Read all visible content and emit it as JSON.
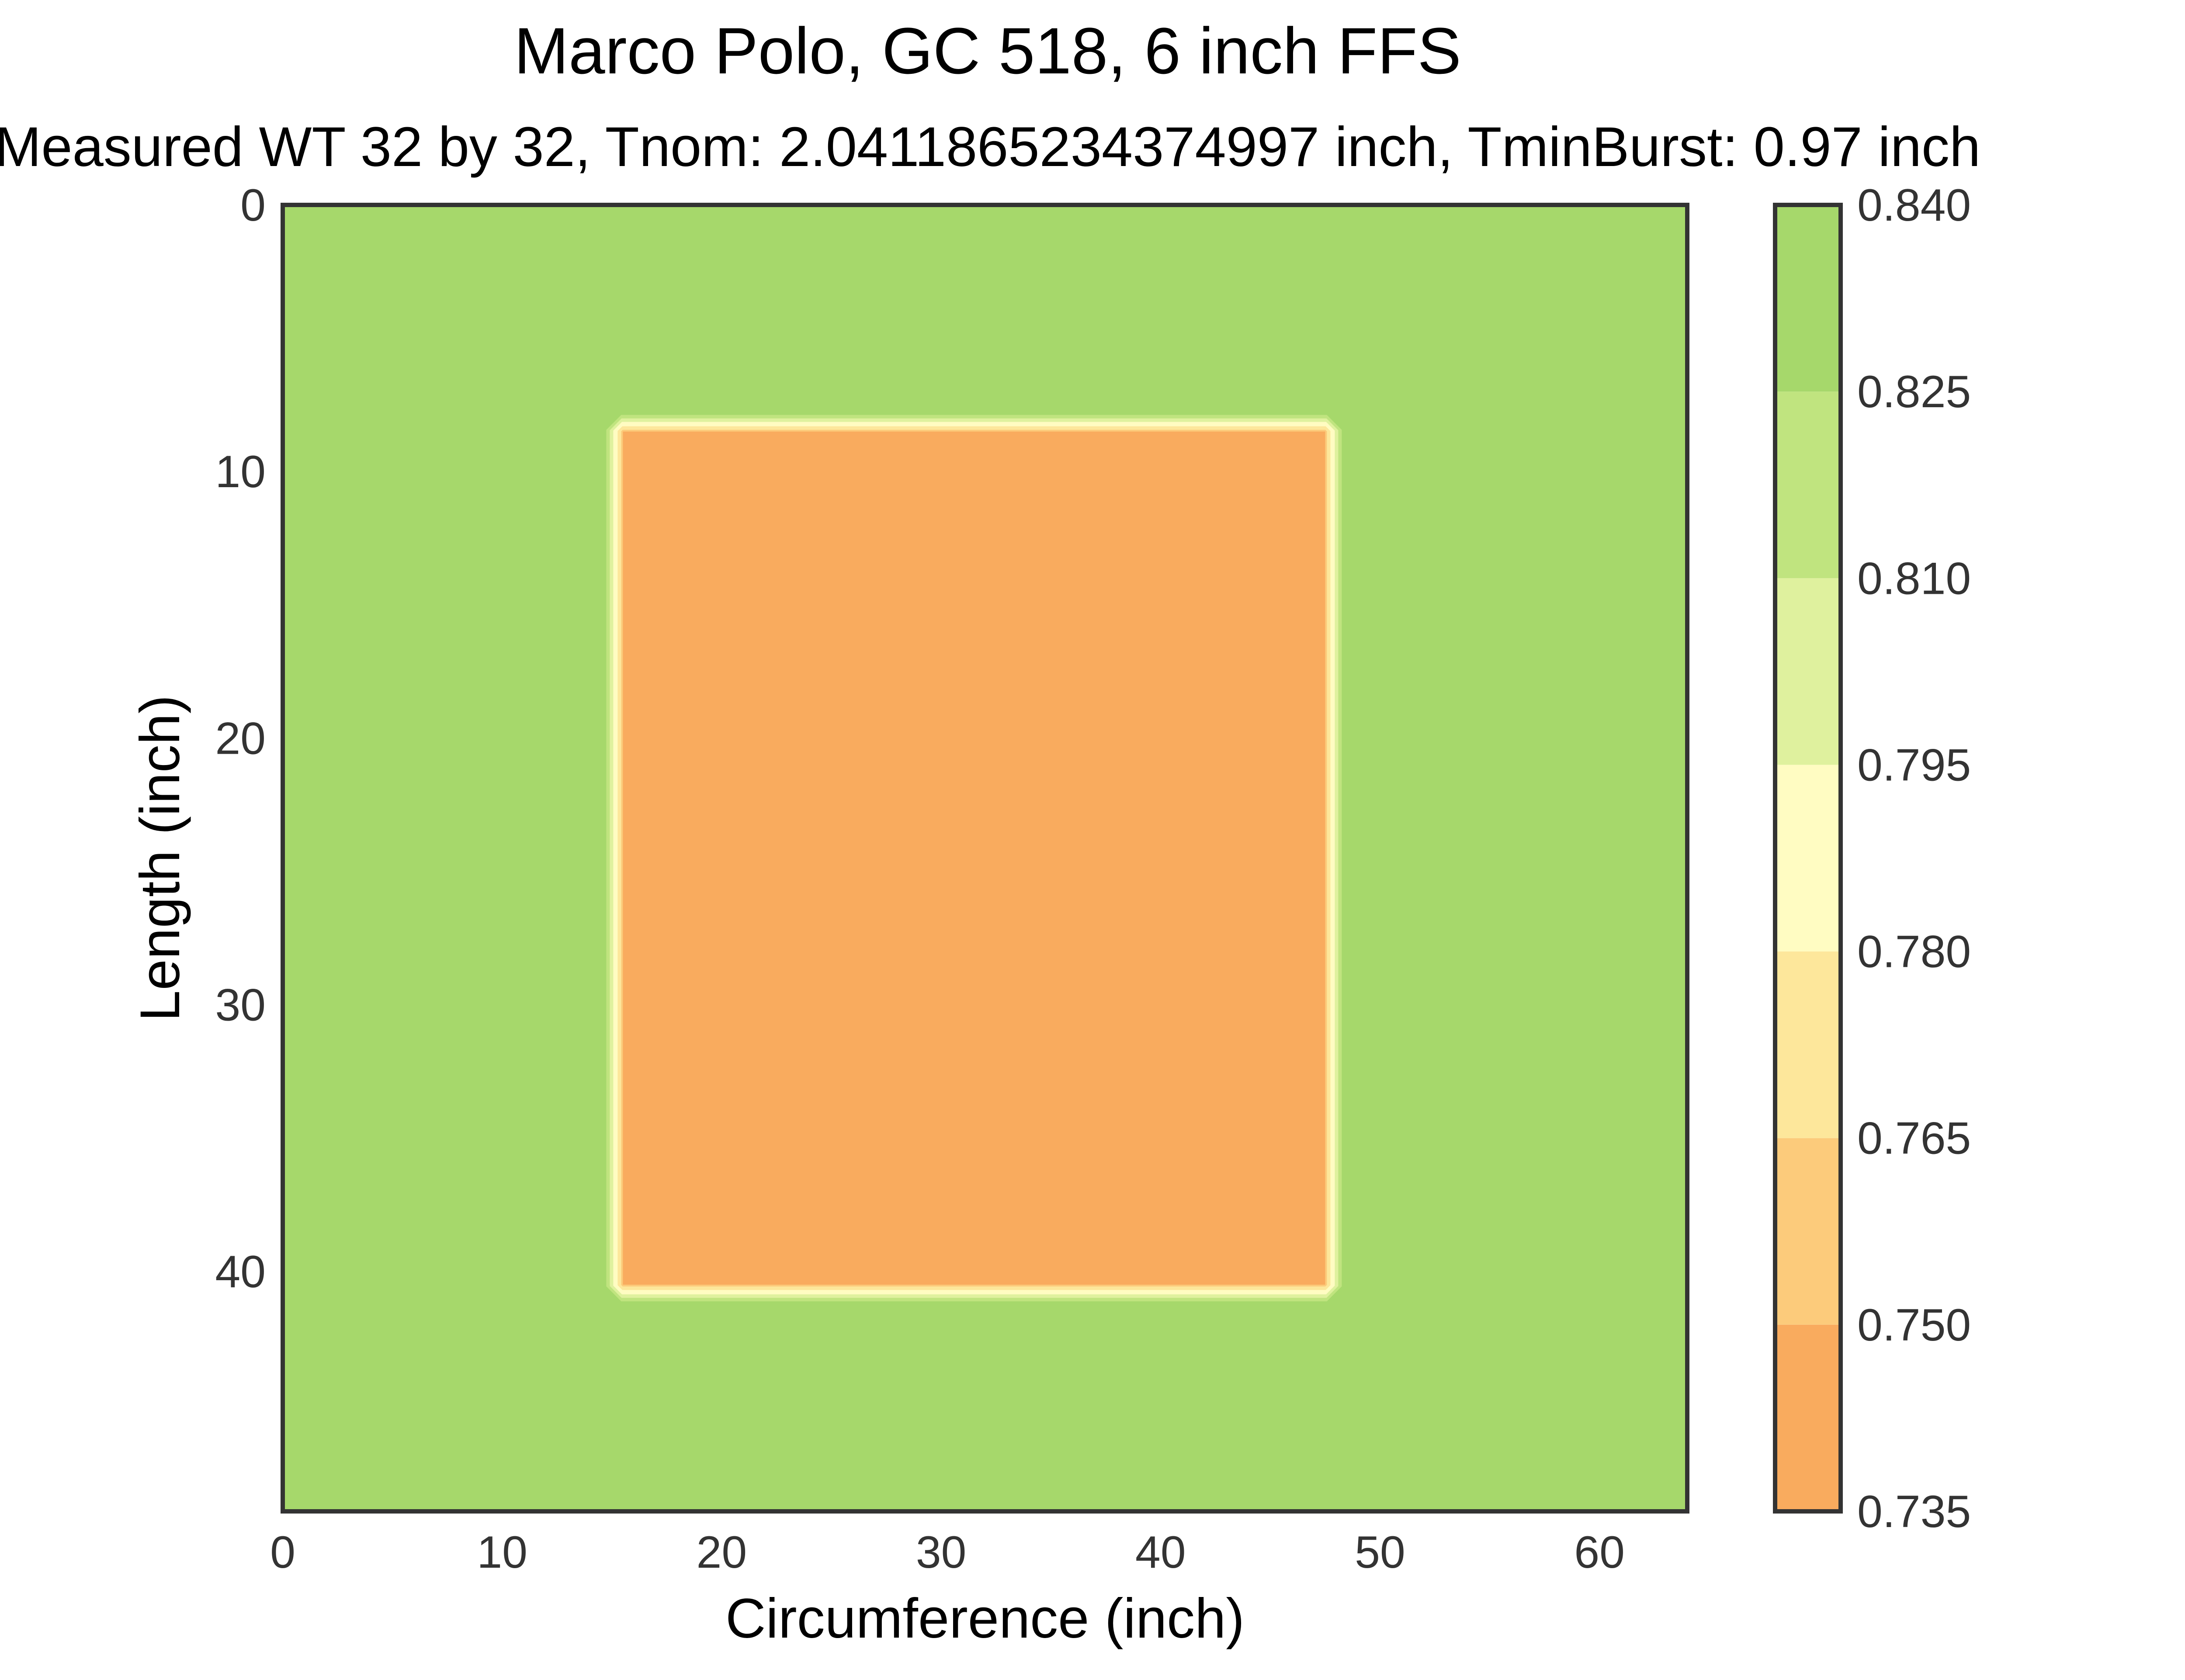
{
  "chart_data": {
    "type": "heatmap",
    "title": "Marco Polo, GC 518, 6 inch FFS",
    "subtitle": "Measured WT 32 by 32, Tnom: 2.0411865234374997 inch, TminBurst: 0.97 inch",
    "xlabel": "Circumference (inch)",
    "ylabel": "Length (inch)",
    "xlim": [
      0,
      64
    ],
    "ylim": [
      49,
      0
    ],
    "x_ticks": [
      0,
      10,
      20,
      30,
      40,
      50,
      60
    ],
    "y_ticks": [
      0,
      10,
      20,
      30,
      40
    ],
    "background_value": 0.84,
    "regions": [
      {
        "x": [
          15.5,
          47.5
        ],
        "y": [
          8.5,
          40.5
        ],
        "value": 0.735
      }
    ],
    "colorbar": {
      "levels": [
        0.735,
        0.75,
        0.765,
        0.78,
        0.795,
        0.81,
        0.825,
        0.84
      ],
      "tick_labels": [
        "0.735",
        "0.750",
        "0.765",
        "0.780",
        "0.795",
        "0.810",
        "0.825",
        "0.840"
      ],
      "colors": [
        "#f9ab5e",
        "#fccb7b",
        "#fde79b",
        "#fffcc2",
        "#dff19e",
        "#c0e47f",
        "#a6d86b"
      ]
    },
    "grid": false
  }
}
